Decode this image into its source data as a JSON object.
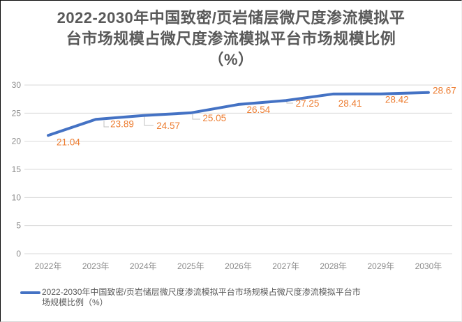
{
  "title": {
    "lines": [
      "2022-2030年中国致密/页岩储层微尺度渗流模拟平",
      "台市场规模占微尺度渗流模拟平台市场规模比例",
      "（%）"
    ]
  },
  "legend": {
    "label": "2022-2030年中国致密/页岩储层微尺度渗流模拟平台市场规模占微尺度渗流模拟平台市场规模比例（%）"
  },
  "chart_data": {
    "type": "line",
    "title": "2022-2030年中国致密/页岩储层微尺度渗流模拟平台市场规模占微尺度渗流模拟平台市场规模比例（%）",
    "categories": [
      "2022年",
      "2023年",
      "2024年",
      "2025年",
      "2026年",
      "2027年",
      "2028年",
      "2029年",
      "2030年"
    ],
    "series": [
      {
        "name": "2022-2030年中国致密/页岩储层微尺度渗流模拟平台市场规模占微尺度渗流模拟平台市场规模比例（%）",
        "values": [
          21.04,
          23.89,
          24.57,
          25.05,
          26.54,
          27.25,
          28.41,
          28.42,
          28.67
        ]
      }
    ],
    "xlabel": "",
    "ylabel": "",
    "ylim": [
      0,
      30
    ],
    "yticks": [
      0,
      5,
      10,
      15,
      20,
      25,
      30
    ],
    "grid": true,
    "data_labels": true,
    "legend_position": "bottom",
    "colors": {
      "line": "#4472C4",
      "data_label": "#ED7D31",
      "axis_text": "#8C8C8C",
      "gridline": "#D9D9D9",
      "title_text": "#595959",
      "leader_line": "#C0C0C0"
    }
  }
}
